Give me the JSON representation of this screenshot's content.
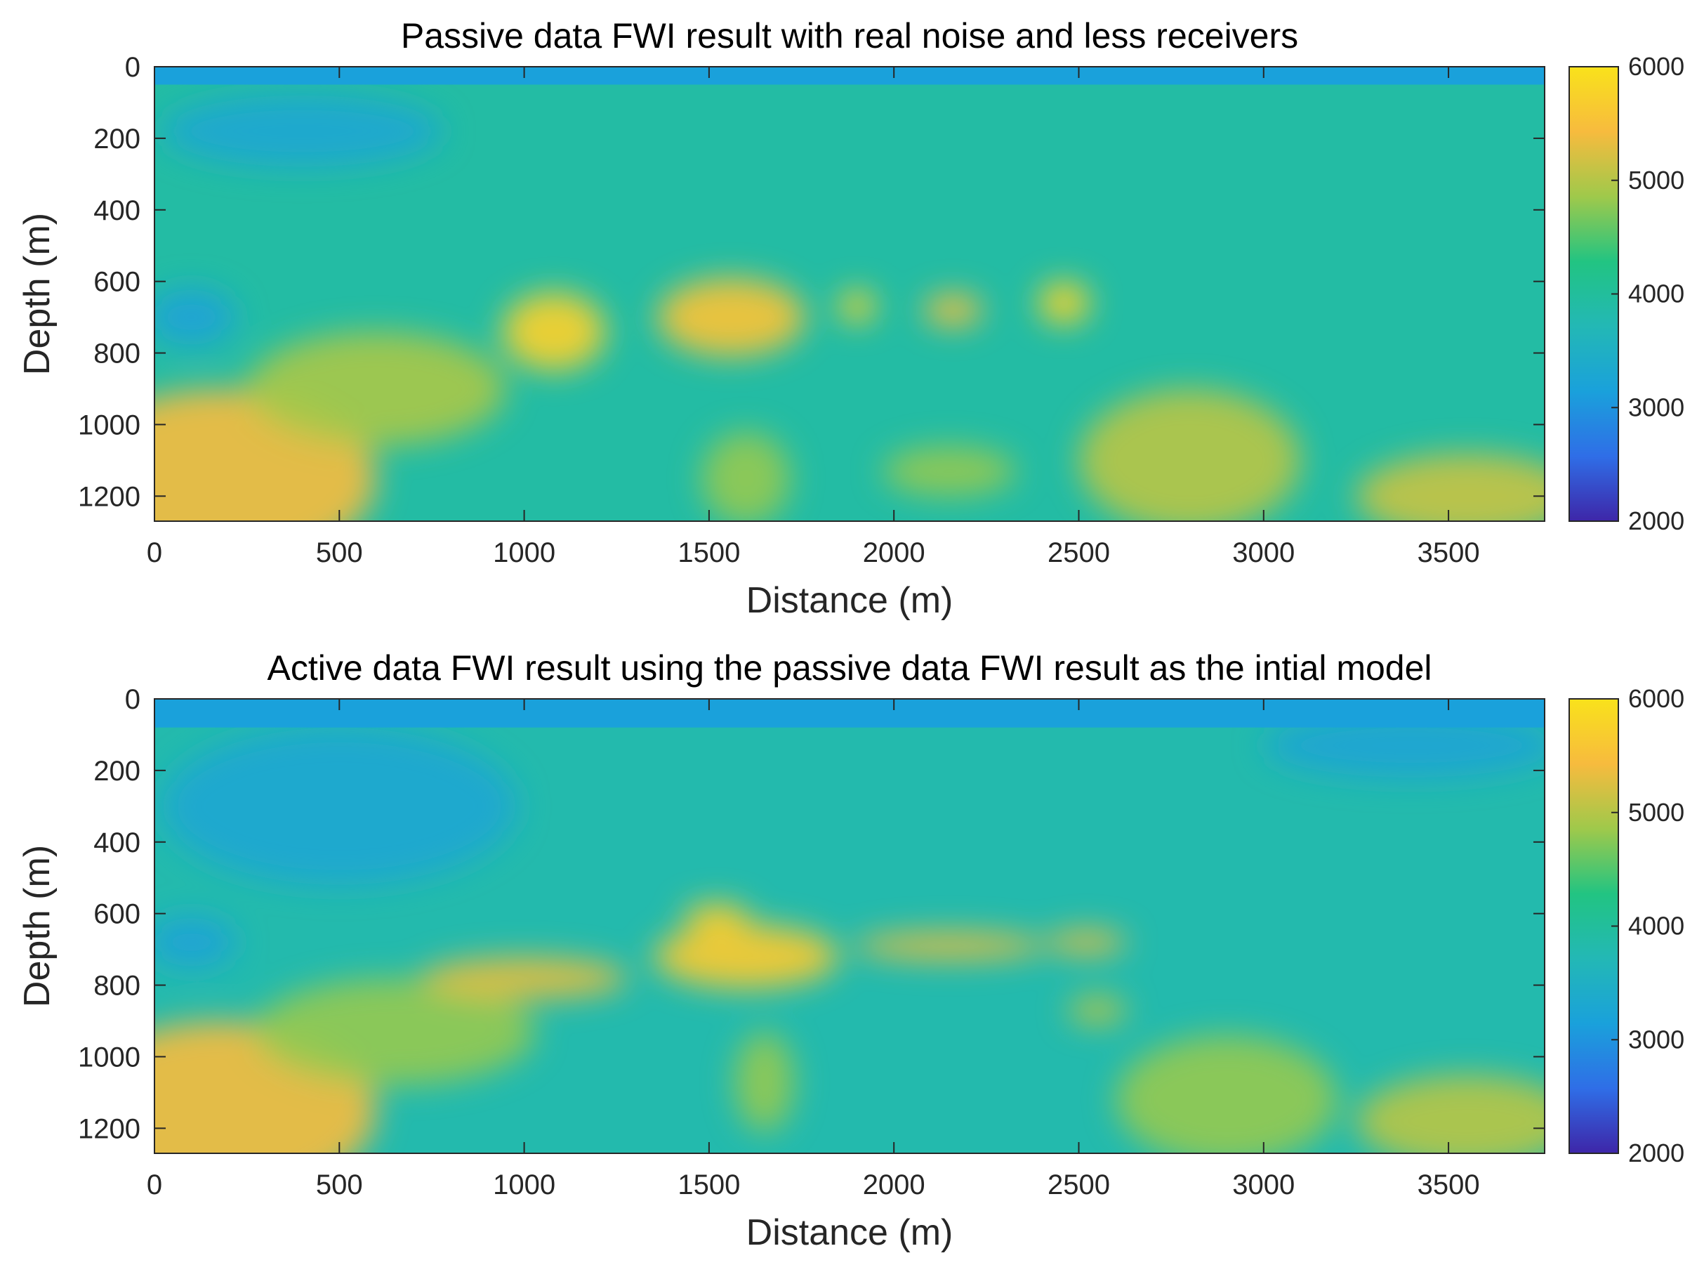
{
  "chart_data": [
    {
      "type": "heatmap",
      "title": "Passive data FWI result with real noise and less receivers",
      "xlabel": "Distance (m)",
      "ylabel": "Depth (m)",
      "xlim": [
        0,
        3760
      ],
      "ylim": [
        1270,
        0
      ],
      "x_ticks": [
        "0",
        "500",
        "1000",
        "1500",
        "2000",
        "2500",
        "3000",
        "3500"
      ],
      "y_ticks": [
        "0",
        "200",
        "400",
        "600",
        "800",
        "1000",
        "1200"
      ],
      "colorbar": {
        "min": 2000,
        "max": 6000,
        "ticks": [
          "6000",
          "5000",
          "4000",
          "3000",
          "2000"
        ]
      },
      "colormap": [
        "#3e26a8",
        "#2f6ee7",
        "#1aa1db",
        "#23b8b5",
        "#22c482",
        "#9fc94b",
        "#f7bb3e",
        "#f9e21b"
      ],
      "water_layer_depth": 50,
      "water_velocity": 3150,
      "background_velocity": 3900,
      "features": [
        {
          "x": 180,
          "y": 1150,
          "rx": 420,
          "ry": 250,
          "value": 5400
        },
        {
          "x": 600,
          "y": 900,
          "rx": 350,
          "ry": 160,
          "value": 4900
        },
        {
          "x": 1080,
          "y": 740,
          "rx": 140,
          "ry": 110,
          "value": 5750
        },
        {
          "x": 1560,
          "y": 700,
          "rx": 200,
          "ry": 110,
          "value": 5550
        },
        {
          "x": 1900,
          "y": 670,
          "rx": 50,
          "ry": 45,
          "value": 5800
        },
        {
          "x": 2160,
          "y": 680,
          "rx": 80,
          "ry": 45,
          "value": 5500
        },
        {
          "x": 2460,
          "y": 660,
          "rx": 70,
          "ry": 60,
          "value": 5800
        },
        {
          "x": 1600,
          "y": 1150,
          "rx": 120,
          "ry": 130,
          "value": 4800
        },
        {
          "x": 2150,
          "y": 1130,
          "rx": 180,
          "ry": 70,
          "value": 4800
        },
        {
          "x": 2800,
          "y": 1100,
          "rx": 300,
          "ry": 200,
          "value": 5000
        },
        {
          "x": 3550,
          "y": 1200,
          "rx": 300,
          "ry": 120,
          "value": 5100
        },
        {
          "x": 400,
          "y": 180,
          "rx": 380,
          "ry": 100,
          "value": 3300
        },
        {
          "x": 100,
          "y": 700,
          "rx": 120,
          "ry": 80,
          "value": 3200
        }
      ]
    },
    {
      "type": "heatmap",
      "title": "Active data FWI result using the passive data FWI result as the intial model",
      "xlabel": "Distance (m)",
      "ylabel": "Depth (m)",
      "xlim": [
        0,
        3760
      ],
      "ylim": [
        1270,
        0
      ],
      "x_ticks": [
        "0",
        "500",
        "1000",
        "1500",
        "2000",
        "2500",
        "3000",
        "3500"
      ],
      "y_ticks": [
        "0",
        "200",
        "400",
        "600",
        "800",
        "1000",
        "1200"
      ],
      "colorbar": {
        "min": 2000,
        "max": 6000,
        "ticks": [
          "6000",
          "5000",
          "4000",
          "3000",
          "2000"
        ]
      },
      "colormap": [
        "#3e26a8",
        "#2f6ee7",
        "#1aa1db",
        "#23b8b5",
        "#22c482",
        "#9fc94b",
        "#f7bb3e",
        "#f9e21b"
      ],
      "water_layer_depth": 80,
      "water_velocity": 3150,
      "background_velocity": 3800,
      "features": [
        {
          "x": 180,
          "y": 1150,
          "rx": 420,
          "ry": 250,
          "value": 5400
        },
        {
          "x": 650,
          "y": 930,
          "rx": 380,
          "ry": 150,
          "value": 4800
        },
        {
          "x": 1000,
          "y": 780,
          "rx": 280,
          "ry": 60,
          "value": 5300
        },
        {
          "x": 1600,
          "y": 720,
          "rx": 250,
          "ry": 90,
          "value": 5650
        },
        {
          "x": 1520,
          "y": 610,
          "rx": 90,
          "ry": 40,
          "value": 5700
        },
        {
          "x": 2150,
          "y": 690,
          "rx": 260,
          "ry": 40,
          "value": 5300
        },
        {
          "x": 2520,
          "y": 680,
          "rx": 110,
          "ry": 35,
          "value": 5300
        },
        {
          "x": 1650,
          "y": 1070,
          "rx": 80,
          "ry": 140,
          "value": 4800
        },
        {
          "x": 2550,
          "y": 870,
          "rx": 80,
          "ry": 40,
          "value": 5000
        },
        {
          "x": 2900,
          "y": 1120,
          "rx": 300,
          "ry": 180,
          "value": 4800
        },
        {
          "x": 3550,
          "y": 1180,
          "rx": 300,
          "ry": 130,
          "value": 5000
        },
        {
          "x": 500,
          "y": 300,
          "rx": 480,
          "ry": 220,
          "value": 3300
        },
        {
          "x": 100,
          "y": 680,
          "rx": 120,
          "ry": 70,
          "value": 3200
        },
        {
          "x": 3400,
          "y": 130,
          "rx": 400,
          "ry": 90,
          "value": 3250
        }
      ]
    }
  ]
}
